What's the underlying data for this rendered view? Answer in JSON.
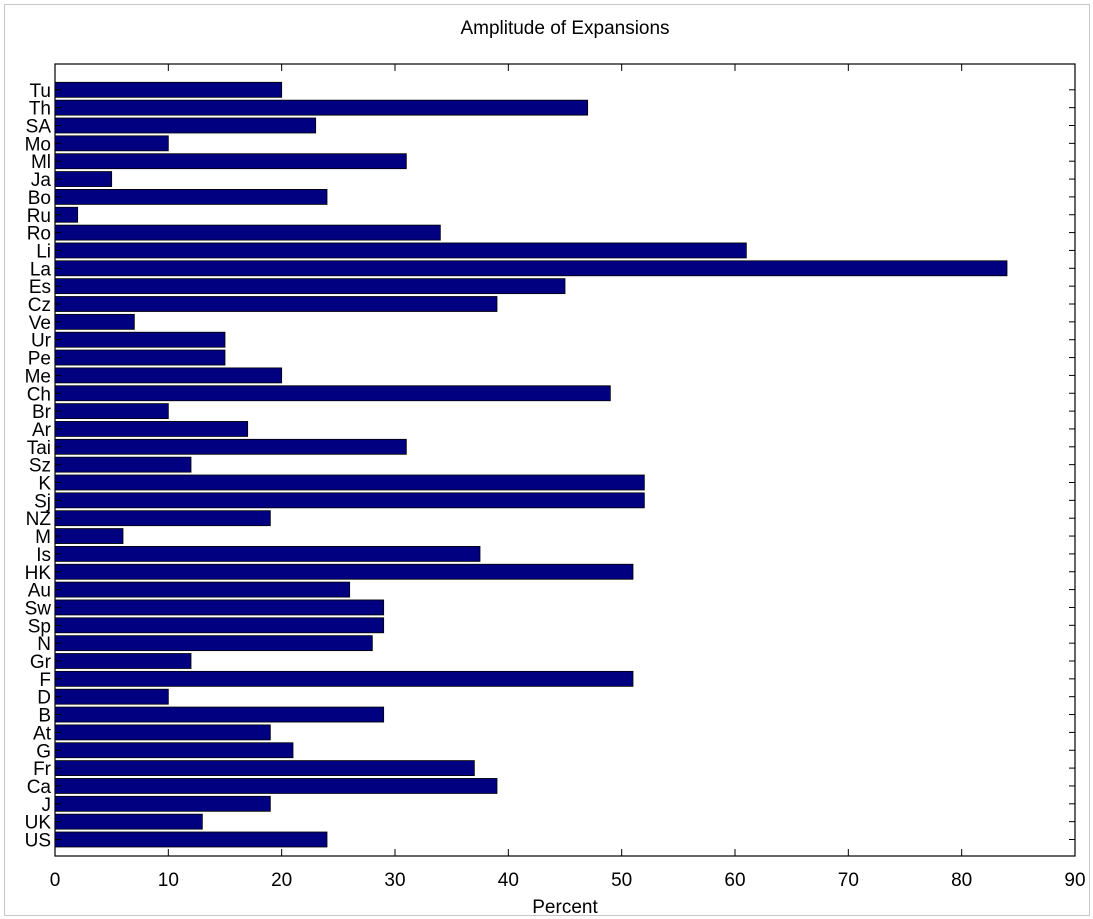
{
  "chart_data": {
    "type": "bar",
    "orientation": "horizontal",
    "title": "Amplitude of Expansions",
    "xlabel": "Percent",
    "ylabel": "",
    "xlim": [
      0,
      90
    ],
    "xticks": [
      "0",
      "10",
      "20",
      "30",
      "40",
      "50",
      "60",
      "70",
      "80",
      "90"
    ],
    "grid": false,
    "legend": "none",
    "bar_color": "#000080",
    "categories": [
      "US",
      "UK",
      "J",
      "Ca",
      "Fr",
      "G",
      "At",
      "B",
      "D",
      "F",
      "Gr",
      "N",
      "Sp",
      "Sw",
      "Au",
      "HK",
      "Is",
      "M",
      "NZ",
      "Sj",
      "K",
      "Sz",
      "Tai",
      "Ar",
      "Br",
      "Ch",
      "Me",
      "Pe",
      "Ur",
      "Ve",
      "Cz",
      "Es",
      "La",
      "Li",
      "Ro",
      "Ru",
      "Bo",
      "Ja",
      "Ml",
      "Mo",
      "SA",
      "Th",
      "Tu"
    ],
    "values": [
      24,
      13,
      19,
      39,
      37,
      21,
      19,
      29,
      10,
      51,
      12,
      28,
      29,
      29,
      26,
      51,
      37.5,
      6,
      19,
      52,
      52,
      12,
      31,
      17,
      10,
      49,
      20,
      15,
      15,
      7,
      39,
      45,
      84,
      61,
      34,
      2,
      24,
      5,
      31,
      10,
      23,
      47,
      20
    ]
  }
}
